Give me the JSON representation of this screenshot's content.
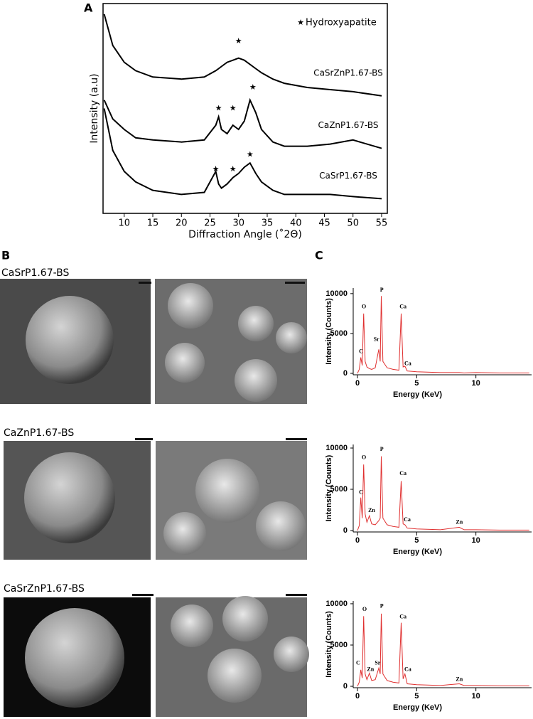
{
  "panel_labels": [
    "A",
    "B",
    "C"
  ],
  "sem_panels": [
    {
      "label": "CaSrP1.67-BS"
    },
    {
      "label": "CaZnP1.67-BS"
    },
    {
      "label": "CaSrZnP1.67-BS"
    }
  ],
  "chart_data": [
    {
      "type": "line",
      "xlabel": "Diffraction Angle (˚2Θ)",
      "ylabel": "Intensity (a.u)",
      "xlim": [
        6.3,
        56
      ],
      "ylim": [
        0,
        100
      ],
      "xticks": [
        10,
        15,
        20,
        25,
        30,
        35,
        40,
        45,
        50,
        55
      ],
      "legend_marker": "★",
      "legend_text": "Hydroxyapatite",
      "x": [
        6.5,
        8,
        10,
        12,
        15,
        20,
        24,
        26,
        26.5,
        27,
        28,
        29,
        30,
        31,
        32,
        33,
        34,
        36,
        38,
        42,
        46,
        50,
        55
      ],
      "series": [
        {
          "name": "CaSrZnP1.67-BS",
          "color": "#000000",
          "values": [
            95,
            80,
            72,
            68,
            65,
            64,
            65,
            68,
            69,
            70,
            72,
            73,
            74,
            73,
            71,
            69,
            67,
            64,
            62,
            60,
            59,
            58,
            56
          ]
        },
        {
          "name": "CaZnP1.67-BS",
          "color": "#000000",
          "values": [
            54,
            45,
            40,
            36,
            35,
            34,
            35,
            42,
            46,
            40,
            38,
            42,
            40,
            44,
            54,
            48,
            40,
            34,
            32,
            32,
            33,
            35,
            31
          ]
        },
        {
          "name": "CaSrP1.67-BS",
          "color": "#000000",
          "values": [
            50,
            30,
            20,
            15,
            11,
            9,
            10,
            20,
            14,
            12,
            14,
            17,
            19,
            22,
            24,
            19,
            15,
            11,
            9,
            9,
            9,
            8,
            7
          ]
        }
      ],
      "annotations": [
        {
          "text": "★",
          "x": 30,
          "y": 82
        },
        {
          "text": "★",
          "x": 26.5,
          "y": 50
        },
        {
          "text": "★",
          "x": 29,
          "y": 50
        },
        {
          "text": "★",
          "x": 32.5,
          "y": 60
        },
        {
          "text": "★",
          "x": 26,
          "y": 21
        },
        {
          "text": "★",
          "x": 29,
          "y": 21
        },
        {
          "text": "★",
          "x": 32,
          "y": 28
        }
      ]
    },
    {
      "type": "line",
      "xlabel": "Energy (KeV)",
      "ylabel": "Intensity (Counts)",
      "xlim": [
        -0.36,
        14.7
      ],
      "ylim": [
        -180,
        10700
      ],
      "xticks": [
        0,
        5,
        10
      ],
      "yticks": [
        0,
        5000,
        10000
      ],
      "x": [
        0,
        0.15,
        0.28,
        0.4,
        0.52,
        0.65,
        0.8,
        1.01,
        1.2,
        1.5,
        1.8,
        1.92,
        2.01,
        2.15,
        2.5,
        3.0,
        3.5,
        3.69,
        3.85,
        4.01,
        4.2,
        5,
        7,
        8.6,
        9,
        10,
        12,
        14.5
      ],
      "series": [
        {
          "name": "CaSrP1.67-BS",
          "color": "#e03030",
          "values": [
            0,
            500,
            2000,
            1000,
            7500,
            1500,
            800,
            600,
            500,
            700,
            3000,
            1500,
            9700,
            1500,
            700,
            500,
            400,
            7500,
            800,
            900,
            300,
            200,
            100,
            100,
            50,
            100,
            50,
            50
          ]
        }
      ],
      "annotations": [
        {
          "text": "C",
          "x": 0.3,
          "y": 2700
        },
        {
          "text": "O",
          "x": 0.55,
          "y": 8300
        },
        {
          "text": "Sr",
          "x": 1.6,
          "y": 4200
        },
        {
          "text": "P",
          "x": 2.05,
          "y": 10400
        },
        {
          "text": "Ca",
          "x": 3.85,
          "y": 8300
        },
        {
          "text": "Ca",
          "x": 4.25,
          "y": 1200
        }
      ]
    },
    {
      "type": "line",
      "xlabel": "Energy (KeV)",
      "ylabel": "Intensity (Counts)",
      "xlim": [
        -0.36,
        14.7
      ],
      "ylim": [
        -170,
        10430
      ],
      "xticks": [
        0,
        5,
        10
      ],
      "yticks": [
        0,
        5000,
        10000
      ],
      "x": [
        0,
        0.15,
        0.28,
        0.4,
        0.52,
        0.65,
        0.8,
        1.01,
        1.2,
        1.5,
        1.8,
        1.92,
        2.01,
        2.15,
        2.5,
        3.0,
        3.5,
        3.69,
        3.85,
        4.01,
        4.2,
        5,
        7,
        8.6,
        9,
        10,
        12,
        14.5
      ],
      "series": [
        {
          "name": "CaZnP1.67-BS",
          "color": "#e03030",
          "values": [
            0,
            600,
            4000,
            1500,
            8000,
            2000,
            1000,
            1800,
            800,
            700,
            1200,
            1500,
            9000,
            1500,
            700,
            500,
            400,
            6000,
            800,
            700,
            300,
            200,
            100,
            400,
            100,
            100,
            50,
            50
          ]
        }
      ],
      "annotations": [
        {
          "text": "C",
          "x": 0.3,
          "y": 4600
        },
        {
          "text": "O",
          "x": 0.55,
          "y": 8800
        },
        {
          "text": "Zn",
          "x": 1.2,
          "y": 2400
        },
        {
          "text": "P",
          "x": 2.05,
          "y": 9800
        },
        {
          "text": "Ca",
          "x": 3.85,
          "y": 6900
        },
        {
          "text": "Ca",
          "x": 4.2,
          "y": 1300
        },
        {
          "text": "Zn",
          "x": 8.6,
          "y": 1000
        }
      ]
    },
    {
      "type": "line",
      "xlabel": "Energy (KeV)",
      "ylabel": "Intensity (Counts)",
      "xlim": [
        -0.36,
        14.7
      ],
      "ylim": [
        -170,
        10340
      ],
      "xticks": [
        0,
        5,
        10
      ],
      "yticks": [
        0,
        5000,
        10000
      ],
      "x": [
        0,
        0.15,
        0.28,
        0.4,
        0.52,
        0.65,
        0.8,
        1.01,
        1.2,
        1.5,
        1.8,
        1.92,
        2.01,
        2.15,
        2.5,
        3.0,
        3.5,
        3.69,
        3.85,
        4.01,
        4.2,
        5,
        7,
        8.6,
        9,
        10,
        12,
        14.5
      ],
      "series": [
        {
          "name": "CaSrZnP1.67-BS",
          "color": "#e03030",
          "values": [
            0,
            500,
            2000,
            1000,
            8500,
            1500,
            800,
            1600,
            700,
            800,
            2200,
            1500,
            8800,
            1500,
            700,
            500,
            400,
            7700,
            900,
            1500,
            300,
            200,
            100,
            300,
            100,
            100,
            50,
            50
          ]
        }
      ],
      "annotations": [
        {
          "text": "C",
          "x": 0.05,
          "y": 2800
        },
        {
          "text": "O",
          "x": 0.6,
          "y": 9300
        },
        {
          "text": "Zn",
          "x": 1.1,
          "y": 2000
        },
        {
          "text": "Sr",
          "x": 1.7,
          "y": 2800
        },
        {
          "text": "P",
          "x": 2.05,
          "y": 9700
        },
        {
          "text": "Ca",
          "x": 3.85,
          "y": 8400
        },
        {
          "text": "Ca",
          "x": 4.25,
          "y": 2000
        },
        {
          "text": "Zn",
          "x": 8.6,
          "y": 800
        }
      ]
    }
  ]
}
